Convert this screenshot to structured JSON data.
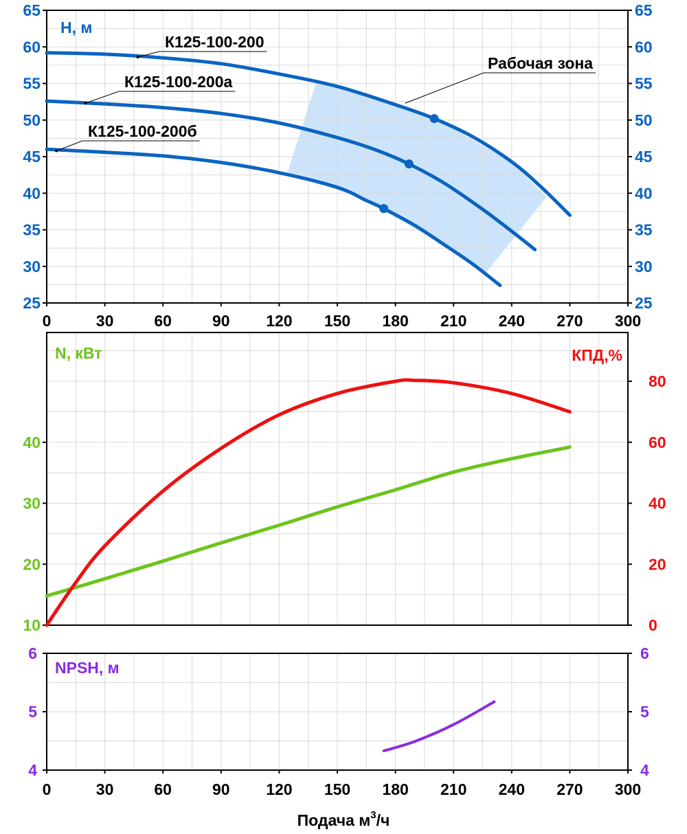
{
  "colors": {
    "head": "#0b64c0",
    "zone": "#cce4fb",
    "power": "#6cc41c",
    "efficiency": "#ee1111",
    "npsh": "#8a2be2",
    "axis": "#000000"
  },
  "chart_data": [
    {
      "type": "line",
      "panel": "head",
      "ylabel": "H, м",
      "xlim": [
        0,
        300
      ],
      "ylim": [
        25,
        65
      ],
      "x_ticks": [
        "0",
        "30",
        "60",
        "90",
        "120",
        "150",
        "180",
        "210",
        "240",
        "270",
        "300"
      ],
      "y_ticks_left": [
        "25",
        "30",
        "35",
        "40",
        "45",
        "50",
        "55",
        "60",
        "65"
      ],
      "y_ticks_right": [
        "25",
        "30",
        "35",
        "40",
        "45",
        "50",
        "55",
        "60",
        "65"
      ],
      "grid": true,
      "series": [
        {
          "name": "К125-100-200",
          "x": [
            0,
            30,
            60,
            90,
            120,
            150,
            180,
            200,
            220,
            240,
            255,
            270
          ],
          "y": [
            59.2,
            59.0,
            58.5,
            57.7,
            56.3,
            54.6,
            52.1,
            50.2,
            47.7,
            44.3,
            40.9,
            37.0
          ],
          "marker": {
            "x": 200,
            "y": 50.2
          },
          "label_anchor": {
            "x": 47,
            "y": 58.6
          }
        },
        {
          "name": "К125-100-200а",
          "x": [
            0,
            30,
            60,
            90,
            120,
            150,
            170,
            187,
            205,
            225,
            240,
            252
          ],
          "y": [
            52.6,
            52.2,
            51.7,
            50.9,
            49.6,
            47.6,
            45.9,
            44.0,
            41.4,
            37.8,
            34.8,
            32.3
          ],
          "marker": {
            "x": 187,
            "y": 44.0
          },
          "label_anchor": {
            "x": 20,
            "y": 52.3
          }
        },
        {
          "name": "К125-100-200б",
          "x": [
            0,
            30,
            60,
            90,
            120,
            150,
            165,
            174,
            190,
            205,
            220,
            234
          ],
          "y": [
            46.0,
            45.6,
            45.1,
            44.2,
            42.8,
            40.8,
            39.0,
            37.9,
            35.6,
            33.0,
            30.3,
            27.4
          ],
          "marker": {
            "x": 174,
            "y": 37.9
          },
          "label_anchor": {
            "x": 5,
            "y": 45.8
          }
        }
      ],
      "annotations": [
        {
          "text": "Рабочая зона",
          "pointer": {
            "x": 185,
            "y": 52.3
          }
        }
      ],
      "working_zone": {
        "x": [
          139,
          150,
          180,
          210,
          240,
          258,
          227,
          190,
          160,
          124
        ],
        "y": [
          55.1,
          54.6,
          52.1,
          48.8,
          44.3,
          39.5,
          29.2,
          35.2,
          39.6,
          42.6
        ]
      }
    },
    {
      "type": "line",
      "panel": "power-efficiency",
      "ylabel": "N, кВт",
      "ylabel_right": "КПД,%",
      "xlim": [
        0,
        300
      ],
      "ylim": [
        10,
        58
      ],
      "ylim_right": [
        0,
        96
      ],
      "y_ticks_left": [
        "10",
        "20",
        "30",
        "40"
      ],
      "y_ticks_right": [
        "0",
        "20",
        "40",
        "60",
        "80"
      ],
      "grid": true,
      "series": [
        {
          "name": "N",
          "axis": "left",
          "x": [
            0,
            30,
            60,
            90,
            120,
            150,
            180,
            210,
            240,
            270
          ],
          "y": [
            14.8,
            17.6,
            20.5,
            23.5,
            26.4,
            29.4,
            32.2,
            35.1,
            37.3,
            39.2
          ]
        },
        {
          "name": "КПД",
          "axis": "right",
          "x": [
            0,
            15,
            30,
            60,
            90,
            120,
            150,
            180,
            190,
            210,
            240,
            270
          ],
          "y": [
            0,
            14,
            26,
            44,
            58,
            69,
            76,
            80,
            80.3,
            79.5,
            76,
            70
          ]
        }
      ]
    },
    {
      "type": "line",
      "panel": "npsh",
      "ylabel": "NPSH, м",
      "xlabel": "Подача м",
      "xlabel_sup": "3",
      "xlabel_tail": "/ч",
      "xlim": [
        0,
        300
      ],
      "ylim": [
        4,
        6
      ],
      "x_ticks": [
        "0",
        "30",
        "60",
        "90",
        "120",
        "150",
        "180",
        "210",
        "240",
        "270",
        "300"
      ],
      "y_ticks_left": [
        "4",
        "5",
        "6"
      ],
      "y_ticks_right": [
        "4",
        "5",
        "6"
      ],
      "grid": true,
      "series": [
        {
          "name": "NPSH",
          "x": [
            174,
            190,
            210,
            231
          ],
          "y": [
            4.33,
            4.49,
            4.78,
            5.17
          ]
        }
      ]
    }
  ]
}
